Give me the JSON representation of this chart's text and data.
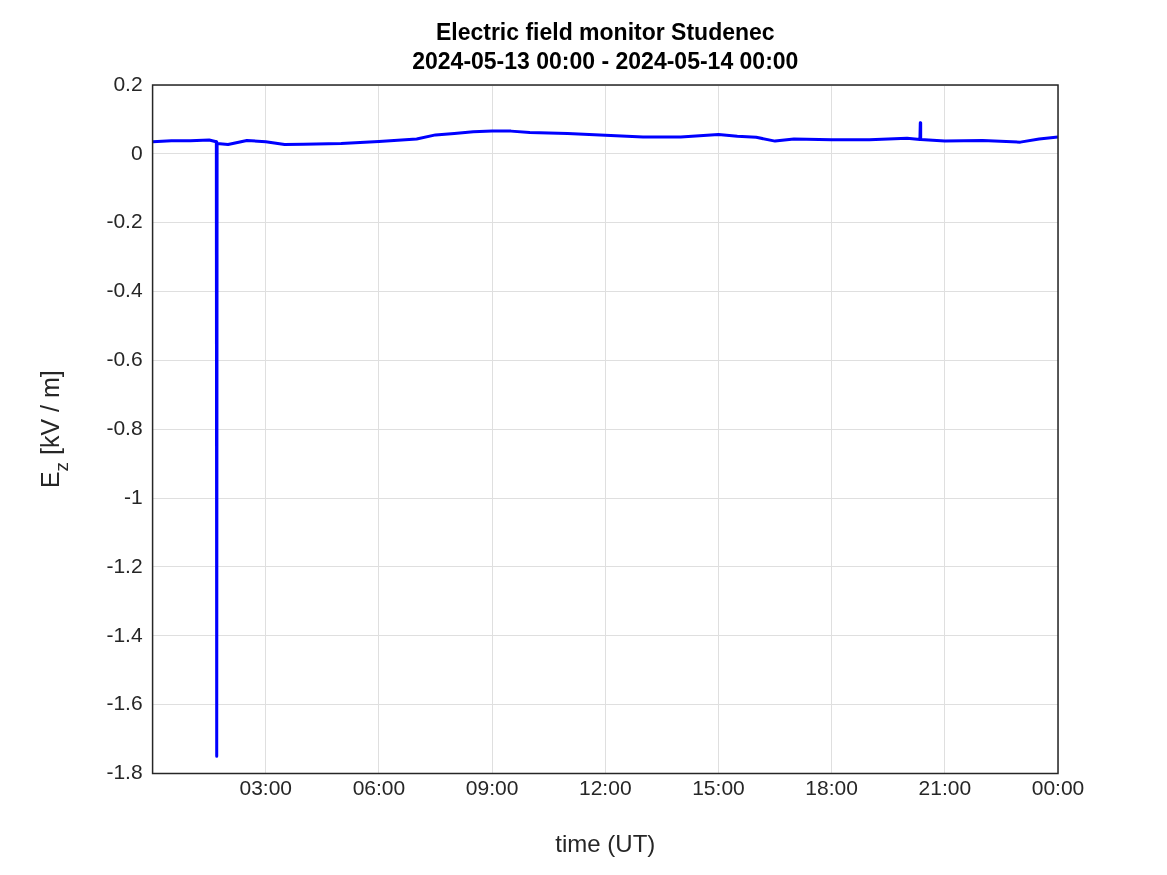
{
  "chart_data": {
    "type": "line",
    "title": "Electric field monitor Studenec",
    "subtitle": "2024-05-13 00:00 - 2024-05-14 00:00",
    "xlabel": "time (UT)",
    "ylabel": "E$_{z}$ [kV / m]",
    "x": [
      0,
      0.5,
      1,
      1.5,
      1.69,
      1.7,
      1.71,
      2,
      2.5,
      3,
      3.5,
      4,
      5,
      6,
      7,
      7.5,
      8,
      8.5,
      9,
      9.5,
      10,
      11,
      12,
      13,
      14,
      15,
      15.5,
      16,
      16.5,
      17,
      18,
      19,
      20,
      20.34,
      20.35,
      20.36,
      21,
      22,
      23,
      23.5,
      24
    ],
    "series": [
      {
        "color": "#0000ff",
        "values": [
          0.035,
          0.038,
          0.038,
          0.04,
          0.035,
          -1.75,
          0.03,
          0.027,
          0.039,
          0.035,
          0.027,
          0.028,
          0.03,
          0.036,
          0.043,
          0.055,
          0.059,
          0.064,
          0.066,
          0.066,
          0.062,
          0.059,
          0.054,
          0.049,
          0.049,
          0.056,
          0.051,
          0.048,
          0.037,
          0.043,
          0.041,
          0.041,
          0.045,
          0.042,
          0.09,
          0.042,
          0.037,
          0.039,
          0.034,
          0.043,
          0.049
        ]
      }
    ],
    "xlim": [
      0,
      24
    ],
    "xticks": [
      {
        "value": 3,
        "label": "03:00"
      },
      {
        "value": 6,
        "label": "06:00"
      },
      {
        "value": 9,
        "label": "09:00"
      },
      {
        "value": 12,
        "label": "12:00"
      },
      {
        "value": 15,
        "label": "15:00"
      },
      {
        "value": 18,
        "label": "18:00"
      },
      {
        "value": 21,
        "label": "21:00"
      },
      {
        "value": 24,
        "label": "00:00"
      }
    ],
    "ylim": [
      -1.8,
      0.2
    ],
    "yticks": [
      -1.8,
      -1.6,
      -1.4,
      -1.2,
      -1,
      -0.8,
      -0.6,
      -0.4,
      -0.2,
      0,
      0.2
    ],
    "grid": true,
    "legend": false,
    "marker": "none",
    "line_style": "solid"
  }
}
